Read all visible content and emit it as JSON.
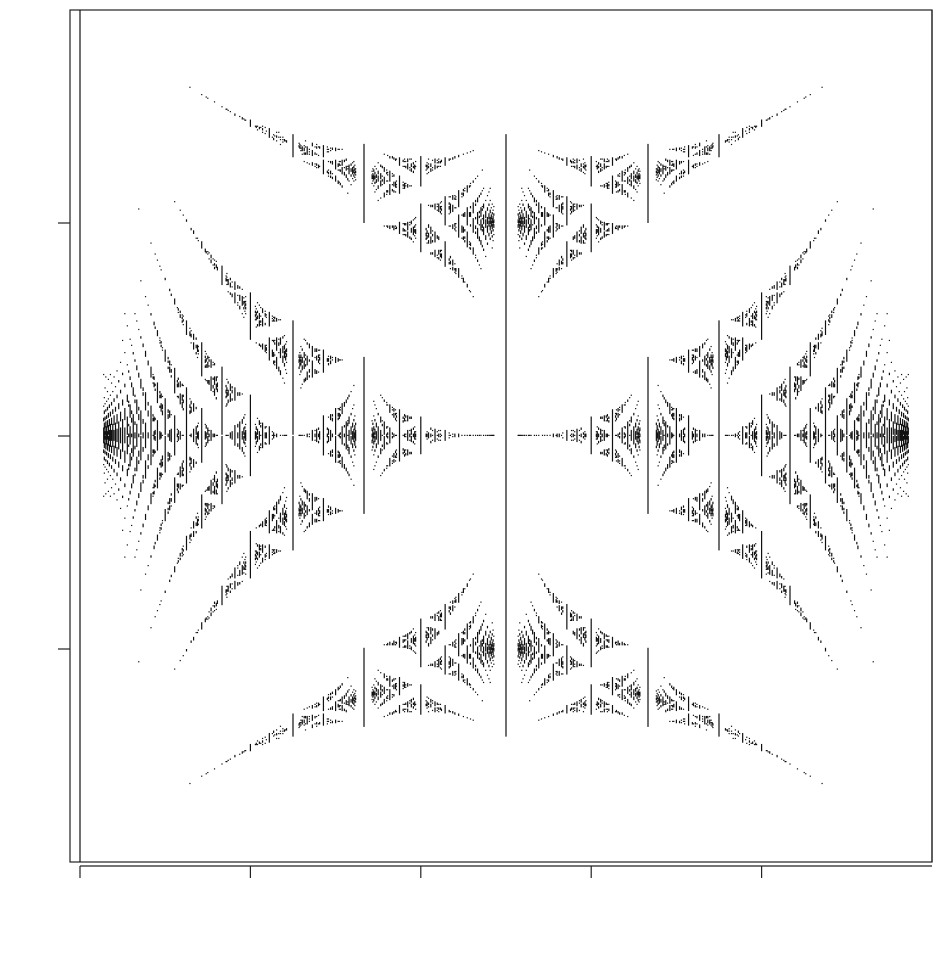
{
  "chart_data": {
    "type": "spectrum",
    "xlim": [
      0,
      1
    ],
    "xticks": [
      0,
      0.2,
      0.4,
      0.6,
      0.8
    ],
    "ylim": [
      -4,
      4
    ],
    "yticks": [
      -2,
      0,
      2
    ]
  }
}
